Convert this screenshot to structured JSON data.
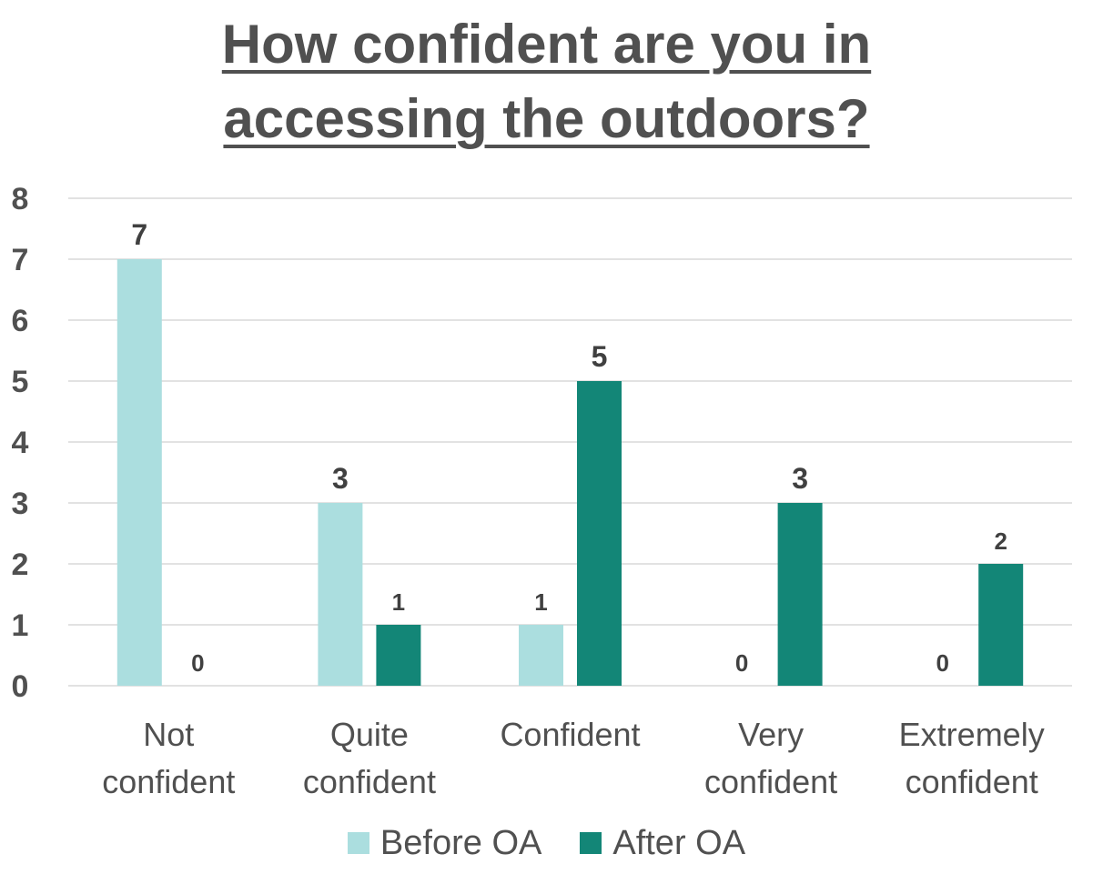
{
  "chart_data": {
    "type": "bar",
    "title_lines": [
      "How confident are you in",
      "accessing the outdoors?"
    ],
    "categories": [
      [
        "Not",
        "confident"
      ],
      [
        "Quite",
        "confident"
      ],
      [
        "Confident"
      ],
      [
        "Very",
        "confident"
      ],
      [
        "Extremely",
        "confident"
      ]
    ],
    "series": [
      {
        "name": "Before OA",
        "color": "#abdedf",
        "values": [
          7,
          3,
          1,
          0,
          0
        ]
      },
      {
        "name": "After OA",
        "color": "#138677",
        "values": [
          0,
          1,
          5,
          3,
          2
        ]
      }
    ],
    "ylim": [
      0,
      8
    ],
    "yticks": [
      "0",
      "1",
      "2",
      "3",
      "4",
      "5",
      "6",
      "7",
      "8"
    ],
    "grid": true,
    "legend_position": "bottom",
    "colors": {
      "text": "#505050",
      "grid": "#d9d9d9",
      "label": "#404040"
    }
  }
}
